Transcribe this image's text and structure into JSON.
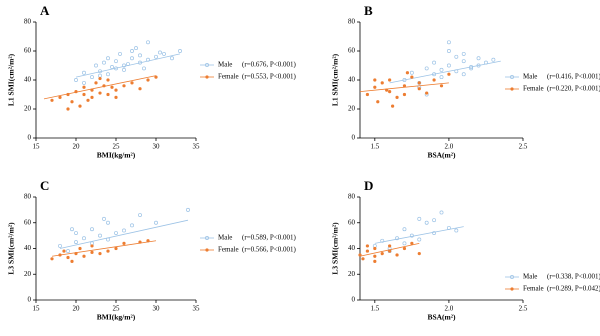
{
  "chart_data": [
    {
      "type": "scatter",
      "panel": "A",
      "xlabel": "BMI(kg/m²)",
      "ylabel": "L1 SMI(cm²/m²)",
      "xlim": [
        15,
        35
      ],
      "ylim": [
        0,
        80
      ],
      "xticks": [
        15,
        20,
        25,
        30,
        35
      ],
      "yticks": [
        0,
        20,
        40,
        60,
        80
      ],
      "series": [
        {
          "name": "Male",
          "stat": "(r=0.676, P<0.001)",
          "color": "#9dc3e6",
          "x": [
            20,
            21,
            22,
            22.5,
            23,
            23.5,
            24,
            24,
            25,
            25,
            25.5,
            26,
            26,
            27,
            27,
            28,
            28,
            29,
            29,
            30,
            31,
            32,
            33,
            21,
            23,
            24.5,
            26.5,
            27.5,
            28.5,
            30.5
          ],
          "values": [
            40,
            45,
            42,
            50,
            46,
            52,
            44,
            55,
            48,
            53,
            58,
            50,
            47,
            55,
            60,
            52,
            57,
            54,
            66,
            56,
            58,
            55,
            60,
            38,
            43,
            49,
            51,
            62,
            48,
            59
          ],
          "fit": {
            "x": [
              20,
              33
            ],
            "y": [
              42,
              58
            ]
          }
        },
        {
          "name": "Female",
          "stat": "(r=0.553, P<0.001)",
          "color": "#ed7d31",
          "x": [
            17,
            18,
            19,
            19.5,
            20,
            20.5,
            21,
            21,
            22,
            22,
            22.5,
            23,
            23.5,
            24,
            24,
            25,
            25,
            26,
            27,
            28,
            29,
            30,
            19,
            21.5,
            23,
            24.5
          ],
          "values": [
            26,
            28,
            30,
            25,
            32,
            22,
            30,
            35,
            28,
            33,
            38,
            31,
            36,
            30,
            40,
            33,
            28,
            36,
            38,
            34,
            40,
            42,
            20,
            26,
            41,
            35
          ],
          "fit": {
            "x": [
              16,
              30
            ],
            "y": [
              27,
              43
            ]
          }
        }
      ]
    },
    {
      "type": "scatter",
      "panel": "B",
      "xlabel": "BSA(m²)",
      "ylabel": "L1 SMI(cm²/m²)",
      "xlim": [
        1.4,
        2.5
      ],
      "ylim": [
        0,
        80
      ],
      "xticks": [
        1.5,
        {
          "value": 2,
          "label": "2.0"
        },
        2.5
      ],
      "yticks": [
        0,
        20,
        40,
        60,
        80
      ],
      "series": [
        {
          "name": "Male",
          "stat": "(r=0.416, P<0.001)",
          "color": "#9dc3e6",
          "x": [
            1.7,
            1.75,
            1.8,
            1.85,
            1.9,
            1.9,
            1.95,
            2.0,
            2.0,
            2.05,
            2.1,
            2.1,
            2.15,
            2.2,
            2.25,
            2.3,
            1.8,
            1.95,
            2.0,
            2.1,
            2.2,
            1.85,
            2.05,
            2.15
          ],
          "values": [
            40,
            45,
            38,
            48,
            44,
            52,
            47,
            50,
            66,
            46,
            53,
            58,
            49,
            55,
            52,
            54,
            35,
            42,
            60,
            44,
            50,
            30,
            56,
            48
          ],
          "fit": {
            "x": [
              1.6,
              2.35
            ],
            "y": [
              38,
              53
            ]
          }
        },
        {
          "name": "Female",
          "stat": "(r=0.220, P<0.001)",
          "color": "#ed7d31",
          "x": [
            1.45,
            1.5,
            1.52,
            1.55,
            1.6,
            1.6,
            1.65,
            1.7,
            1.7,
            1.75,
            1.8,
            1.8,
            1.85,
            1.9,
            1.95,
            2.0,
            1.5,
            1.62,
            1.72,
            1.58
          ],
          "values": [
            30,
            35,
            25,
            38,
            32,
            40,
            28,
            36,
            30,
            42,
            34,
            38,
            31,
            40,
            36,
            44,
            40,
            22,
            45,
            33
          ],
          "fit": {
            "x": [
              1.4,
              2.0
            ],
            "y": [
              32,
              38
            ]
          }
        }
      ]
    },
    {
      "type": "scatter",
      "panel": "C",
      "xlabel": "BMI(kg/m²)",
      "ylabel": "L3 SMI(cm²/m²)",
      "xlim": [
        15,
        35
      ],
      "ylim": [
        0,
        80
      ],
      "xticks": [
        15,
        20,
        25,
        30,
        35
      ],
      "yticks": [
        0,
        20,
        40,
        60,
        80
      ],
      "series": [
        {
          "name": "Male",
          "stat": "(r=0.589, P<0.001)",
          "color": "#9dc3e6",
          "x": [
            18,
            19,
            20,
            20,
            21,
            22,
            22,
            23,
            24,
            24,
            25,
            26,
            27,
            28,
            30,
            34,
            19.5,
            23.5
          ],
          "values": [
            42,
            38,
            45,
            52,
            48,
            44,
            55,
            50,
            47,
            60,
            52,
            54,
            58,
            66,
            60,
            70,
            55,
            63
          ],
          "fit": {
            "x": [
              18,
              34
            ],
            "y": [
              40,
              62
            ]
          }
        },
        {
          "name": "Female",
          "stat": "(r=0.566, P<0.001)",
          "color": "#ed7d31",
          "x": [
            17,
            18,
            18.5,
            19,
            20,
            20.5,
            21,
            22,
            22,
            23,
            24,
            25,
            26,
            28,
            29,
            19.5
          ],
          "values": [
            32,
            35,
            38,
            33,
            36,
            40,
            34,
            37,
            42,
            36,
            38,
            40,
            44,
            45,
            46,
            30
          ],
          "fit": {
            "x": [
              17,
              30
            ],
            "y": [
              34,
              46
            ]
          }
        }
      ]
    },
    {
      "type": "scatter",
      "panel": "D",
      "xlabel": "BSA(m²)",
      "ylabel": "L3 SMI(cm²/m²)",
      "xlim": [
        1.4,
        2.5
      ],
      "ylim": [
        0,
        80
      ],
      "xticks": [
        1.5,
        {
          "value": 2,
          "label": "2.0"
        },
        2.5
      ],
      "yticks": [
        0,
        20,
        40,
        60,
        80
      ],
      "series": [
        {
          "name": "Male",
          "stat": "(r=0.338, P<0.001)",
          "color": "#9dc3e6",
          "x": [
            1.5,
            1.55,
            1.6,
            1.65,
            1.7,
            1.7,
            1.75,
            1.8,
            1.85,
            1.9,
            1.95,
            2.0,
            2.05,
            1.6,
            1.8,
            1.9
          ],
          "values": [
            42,
            46,
            40,
            48,
            44,
            55,
            50,
            47,
            60,
            52,
            68,
            56,
            54,
            38,
            63,
            62
          ],
          "fit": {
            "x": [
              1.5,
              2.1
            ],
            "y": [
              44,
              57
            ]
          }
        },
        {
          "name": "Female",
          "stat": "(r=0.289, P=0.042)",
          "color": "#ed7d31",
          "x": [
            1.4,
            1.42,
            1.45,
            1.5,
            1.5,
            1.55,
            1.6,
            1.6,
            1.65,
            1.7,
            1.75,
            1.5,
            1.8,
            1.45
          ],
          "values": [
            35,
            32,
            38,
            34,
            40,
            36,
            38,
            42,
            35,
            40,
            44,
            30,
            36,
            42
          ],
          "fit": {
            "x": [
              1.4,
              1.8
            ],
            "y": [
              34,
              44
            ]
          }
        }
      ]
    }
  ]
}
